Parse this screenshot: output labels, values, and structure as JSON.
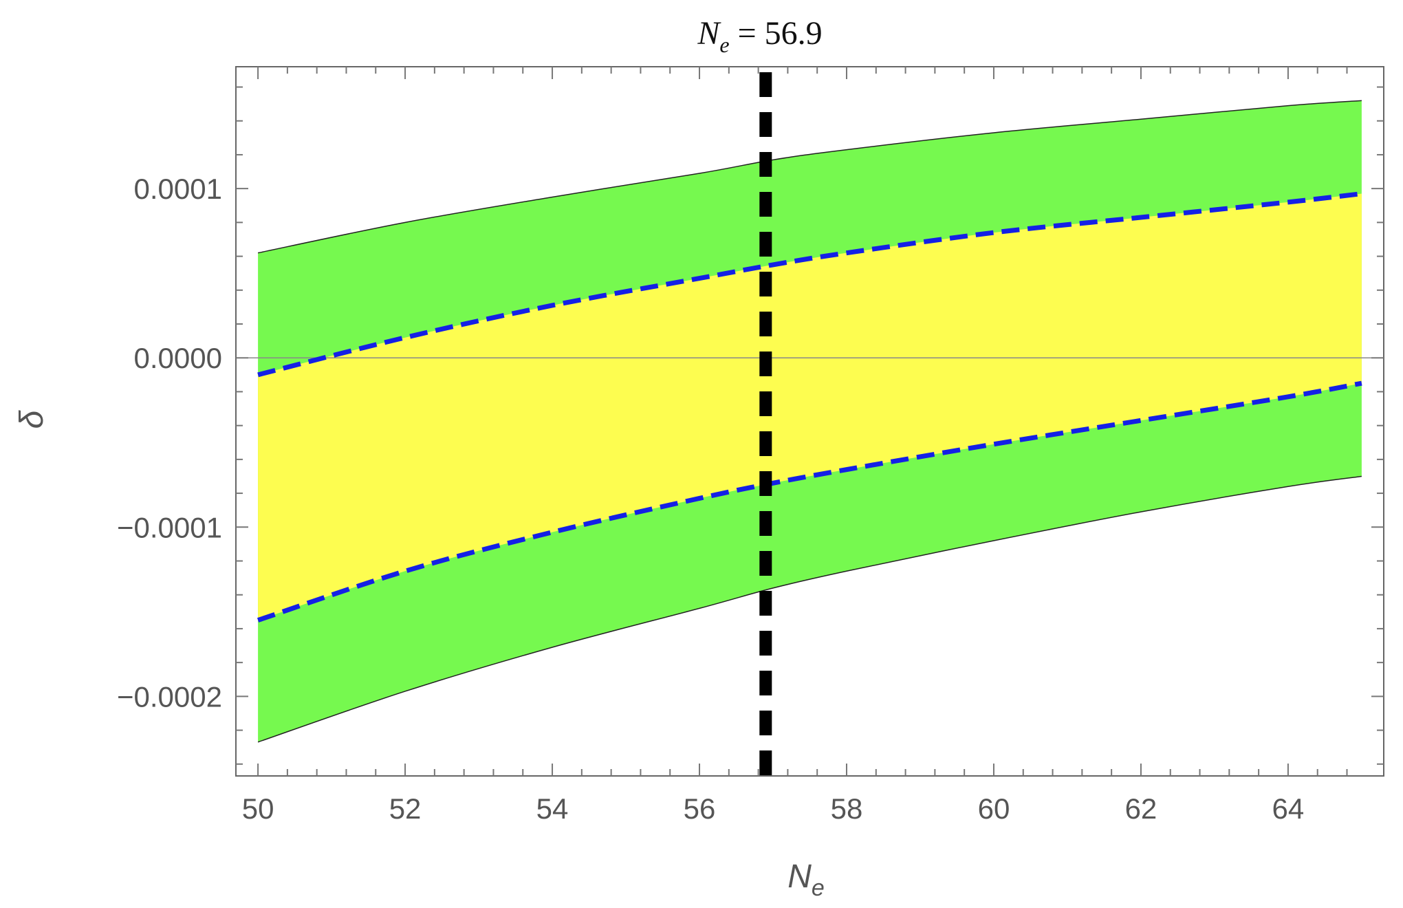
{
  "chart_data": {
    "type": "area",
    "title": {
      "var": "N",
      "sub": "e",
      "rest": " = 56.9"
    },
    "xlabel": {
      "var": "N",
      "sub": "e"
    },
    "ylabel": "δ",
    "xlim": [
      49.7,
      65.3
    ],
    "ylim": [
      -0.000247,
      0.000172
    ],
    "x_ticks": [
      50,
      52,
      54,
      56,
      58,
      60,
      62,
      64
    ],
    "x_tick_labels": [
      "50",
      "52",
      "54",
      "56",
      "58",
      "60",
      "62",
      "64"
    ],
    "y_ticks": [
      0.0001,
      0.0,
      -0.0001,
      -0.0002
    ],
    "y_tick_labels": [
      "0.0001",
      "0.0000",
      "−0.0001",
      "−0.0002"
    ],
    "x": [
      50,
      52,
      54,
      56,
      57,
      58,
      60,
      62,
      64,
      65
    ],
    "bands": [
      {
        "color": "#76f94f",
        "upper": [
          6.2e-05,
          8e-05,
          9.5e-05,
          0.000109,
          0.000117,
          0.000123,
          0.000133,
          0.000141,
          0.000149,
          0.000152
        ],
        "lower": [
          -0.000227,
          -0.000197,
          -0.000171,
          -0.000148,
          -0.000136,
          -0.000126,
          -0.000108,
          -9.1e-05,
          -7.6e-05,
          -7e-05
        ]
      },
      {
        "color": "#fdfd50",
        "upper": [
          -1e-05,
          1.2e-05,
          3.1e-05,
          4.7e-05,
          5.5e-05,
          6.2e-05,
          7.4e-05,
          8.3e-05,
          9.2e-05,
          9.7e-05
        ],
        "lower": [
          -0.000155,
          -0.000126,
          -0.000103,
          -8.3e-05,
          -7.4e-05,
          -6.6e-05,
          -5.1e-05,
          -3.7e-05,
          -2.3e-05,
          -1.5e-05
        ]
      }
    ],
    "dashed_series": [
      {
        "color": "#1420e6",
        "values": [
          -1e-05,
          1.2e-05,
          3.1e-05,
          4.7e-05,
          5.5e-05,
          6.2e-05,
          7.4e-05,
          8.3e-05,
          9.2e-05,
          9.7e-05
        ]
      },
      {
        "color": "#1420e6",
        "values": [
          -0.000155,
          -0.000126,
          -0.000103,
          -8.3e-05,
          -7.4e-05,
          -6.6e-05,
          -5.1e-05,
          -3.7e-05,
          -2.3e-05,
          -1.5e-05
        ]
      }
    ],
    "vertical_line": {
      "x": 56.9,
      "color": "#000000",
      "style": "dashed"
    },
    "zero_line": 0.0,
    "grid": false
  }
}
